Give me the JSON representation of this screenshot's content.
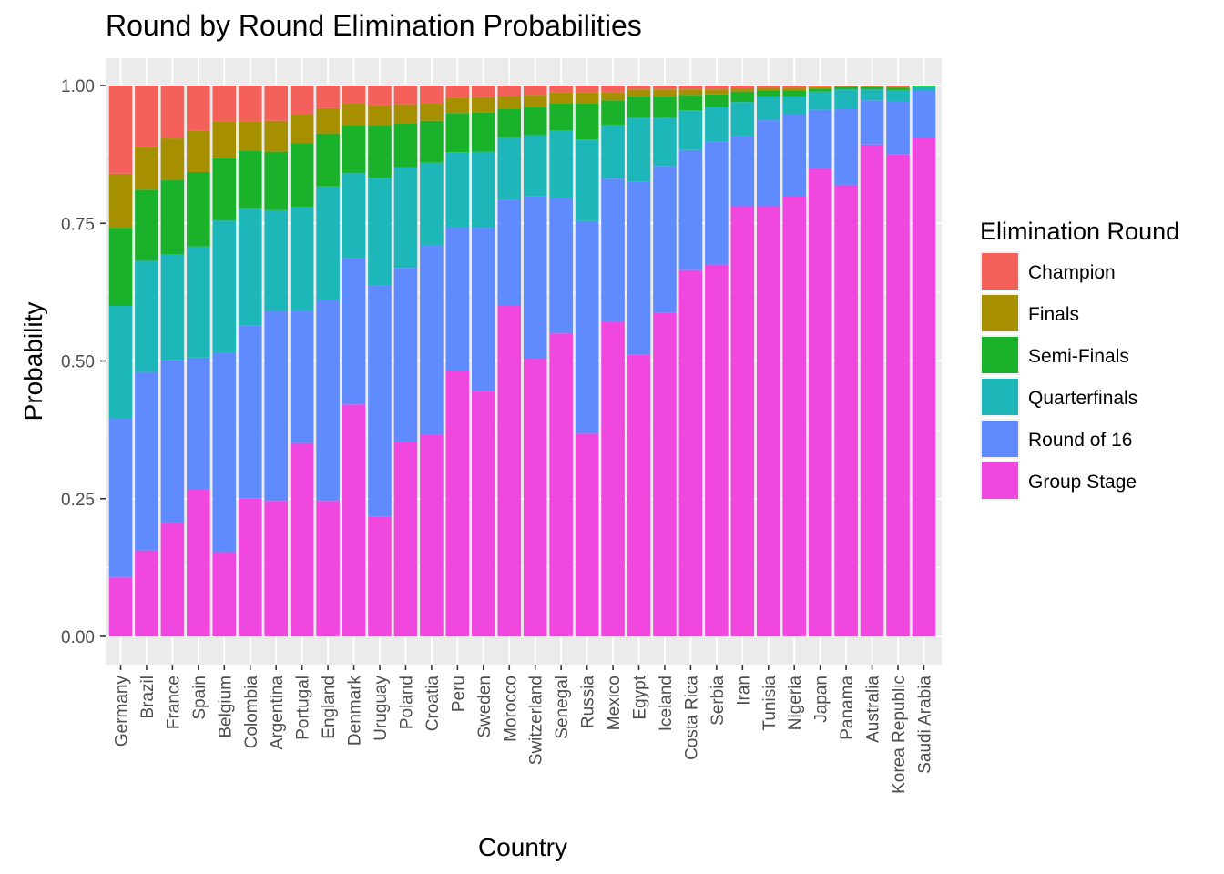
{
  "chart_data": {
    "type": "bar",
    "stacked": true,
    "title": "Round by Round Elimination Probabilities",
    "xlabel": "Country",
    "ylabel": "Probability",
    "ylim": [
      0,
      1
    ],
    "y_ticks": [
      "0.00",
      "0.25",
      "0.50",
      "0.75",
      "1.00"
    ],
    "grid": true,
    "legend_position": "right",
    "legend_title": "Elimination Round",
    "categories": [
      "Germany",
      "Brazil",
      "France",
      "Spain",
      "Belgium",
      "Colombia",
      "Argentina",
      "Portugal",
      "England",
      "Denmark",
      "Uruguay",
      "Poland",
      "Croatia",
      "Peru",
      "Sweden",
      "Morocco",
      "Switzerland",
      "Senegal",
      "Russia",
      "Mexico",
      "Egypt",
      "Iceland",
      "Costa Rica",
      "Serbia",
      "Iran",
      "Tunisia",
      "Nigeria",
      "Japan",
      "Panama",
      "Australia",
      "Korea Republic",
      "Saudi Arabia"
    ],
    "series": [
      {
        "name": "Group Stage",
        "color": "#f047df",
        "values": [
          0.107,
          0.156,
          0.206,
          0.267,
          0.153,
          0.25,
          0.246,
          0.351,
          0.246,
          0.421,
          0.217,
          0.353,
          0.366,
          0.481,
          0.445,
          0.6,
          0.504,
          0.55,
          0.368,
          0.572,
          0.511,
          0.587,
          0.665,
          0.675,
          0.781,
          0.781,
          0.8,
          0.85,
          0.82,
          0.893,
          0.875,
          0.905
        ]
      },
      {
        "name": "Round of 16",
        "color": "#5f8bff",
        "values": [
          0.288,
          0.324,
          0.296,
          0.239,
          0.362,
          0.314,
          0.344,
          0.24,
          0.364,
          0.266,
          0.42,
          0.316,
          0.344,
          0.262,
          0.297,
          0.192,
          0.295,
          0.246,
          0.386,
          0.259,
          0.315,
          0.267,
          0.218,
          0.223,
          0.128,
          0.156,
          0.148,
          0.106,
          0.137,
          0.08,
          0.096,
          0.085
        ]
      },
      {
        "name": "Quarterfinals",
        "color": "#1db7b9",
        "values": [
          0.205,
          0.202,
          0.191,
          0.202,
          0.24,
          0.213,
          0.184,
          0.189,
          0.207,
          0.154,
          0.196,
          0.183,
          0.15,
          0.136,
          0.138,
          0.114,
          0.111,
          0.123,
          0.148,
          0.098,
          0.115,
          0.087,
          0.072,
          0.063,
          0.061,
          0.044,
          0.033,
          0.033,
          0.036,
          0.02,
          0.021,
          0.008
        ]
      },
      {
        "name": "Semi-Finals",
        "color": "#1ab22b",
        "values": [
          0.142,
          0.129,
          0.135,
          0.135,
          0.113,
          0.104,
          0.106,
          0.115,
          0.096,
          0.087,
          0.095,
          0.08,
          0.076,
          0.071,
          0.071,
          0.052,
          0.051,
          0.048,
          0.065,
          0.044,
          0.039,
          0.039,
          0.028,
          0.023,
          0.019,
          0.01,
          0.01,
          0.005,
          0.005,
          0.004,
          0.004,
          0.002
        ]
      },
      {
        "name": "Finals",
        "color": "#a78f02",
        "values": [
          0.098,
          0.078,
          0.076,
          0.075,
          0.066,
          0.054,
          0.056,
          0.053,
          0.046,
          0.039,
          0.037,
          0.034,
          0.031,
          0.028,
          0.028,
          0.023,
          0.022,
          0.02,
          0.02,
          0.015,
          0.013,
          0.013,
          0.01,
          0.009,
          0.006,
          0.005,
          0.005,
          0.003,
          0.001,
          0.002,
          0.002,
          0.0
        ]
      },
      {
        "name": "Champion",
        "color": "#f4615b",
        "values": [
          0.16,
          0.111,
          0.096,
          0.082,
          0.066,
          0.065,
          0.064,
          0.052,
          0.041,
          0.033,
          0.035,
          0.034,
          0.033,
          0.022,
          0.021,
          0.019,
          0.017,
          0.013,
          0.013,
          0.012,
          0.007,
          0.007,
          0.007,
          0.007,
          0.005,
          0.004,
          0.004,
          0.003,
          0.001,
          0.001,
          0.002,
          0.0
        ]
      }
    ],
    "legend_order": [
      "Champion",
      "Finals",
      "Semi-Finals",
      "Quarterfinals",
      "Round of 16",
      "Group Stage"
    ]
  }
}
